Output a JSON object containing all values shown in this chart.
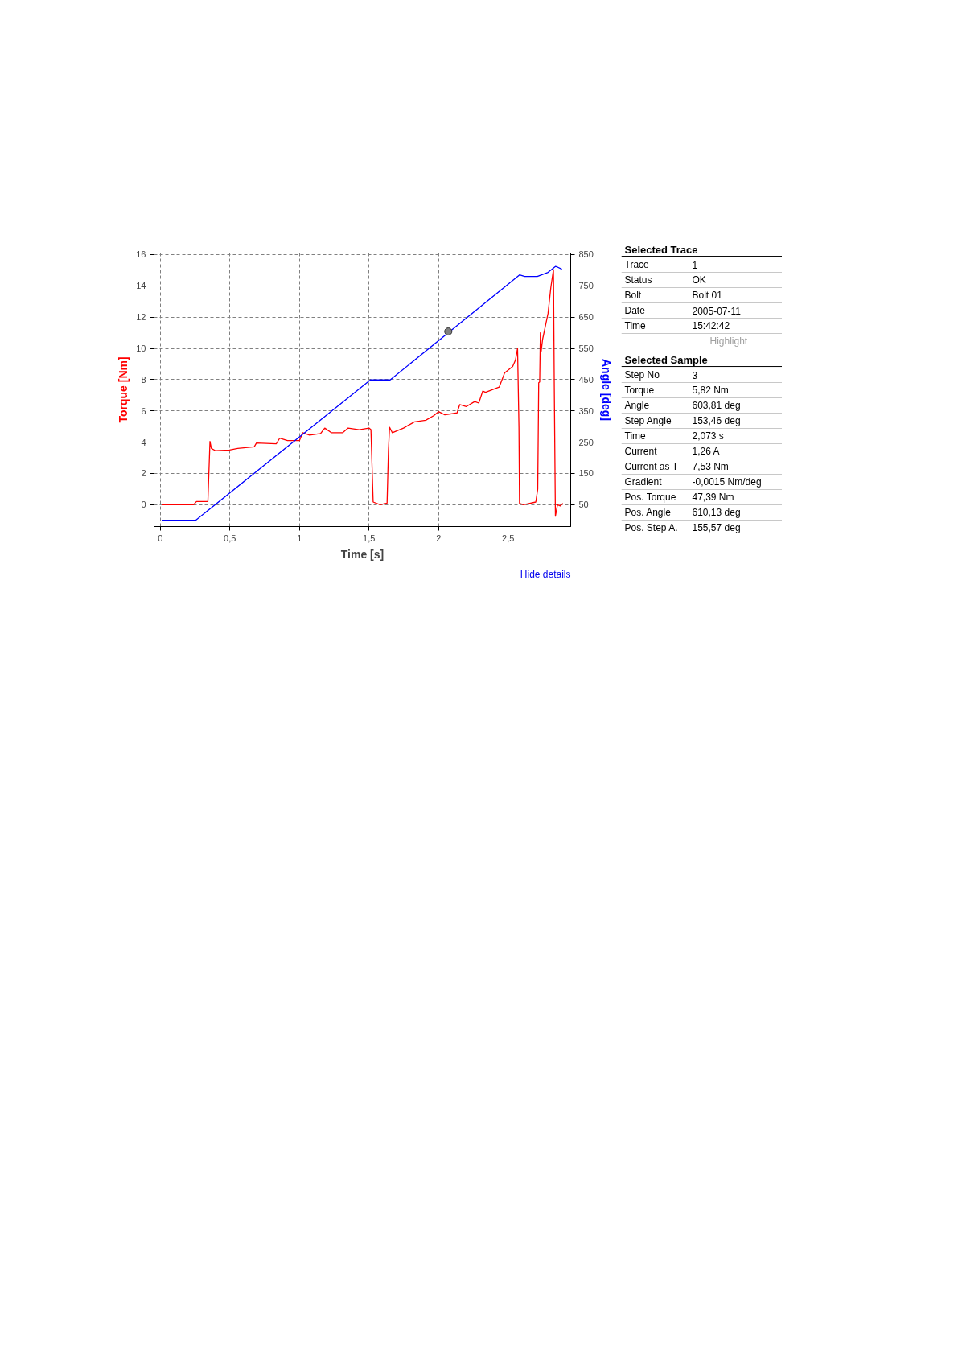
{
  "chart_data": [
    {
      "type": "line",
      "xlabel": "Time [s]",
      "ylabel": "Torque [Nm]",
      "y2label": "Angle [deg]",
      "xlim": [
        -0.045,
        2.95
      ],
      "ylim": [
        -1.4,
        16.1
      ],
      "y2lim": [
        -20,
        855
      ],
      "xticks": [
        0,
        {
          "value": 0.5,
          "label": "0,5"
        },
        1,
        {
          "value": 1.5,
          "label": "1,5"
        },
        2,
        {
          "value": 2.5,
          "label": "2,5"
        }
      ],
      "yticks": [
        0,
        2,
        4,
        6,
        8,
        10,
        12,
        14,
        16
      ],
      "y2ticks": [
        50,
        150,
        250,
        350,
        450,
        550,
        650,
        750,
        850
      ],
      "grid": true,
      "line_style": "solid",
      "annotations": [
        "Hide details"
      ],
      "series": [
        {
          "color": "#ff0000",
          "marker": "none",
          "x": [
            0.01,
            0.24,
            0.26,
            0.342,
            0.357,
            0.367,
            0.397,
            0.497,
            0.556,
            0.675,
            0.691,
            0.834,
            0.858,
            0.914,
            1.0,
            1.023,
            1.073,
            1.152,
            1.182,
            1.231,
            1.31,
            1.35,
            1.43,
            1.5,
            1.514,
            1.53,
            1.58,
            1.63,
            1.64,
            1.648,
            1.668,
            1.748,
            1.827,
            1.908,
            1.967,
            2.0,
            2.045,
            2.133,
            2.152,
            2.2,
            2.26,
            2.289,
            2.318,
            2.338,
            2.436,
            2.475,
            2.533,
            2.553,
            2.568,
            2.578,
            2.582,
            2.611,
            2.699,
            2.713,
            2.72,
            2.727,
            2.732,
            2.738,
            2.748,
            2.787,
            2.807,
            2.826,
            2.832,
            2.84,
            2.855,
            2.875,
            2.895
          ],
          "values": [
            0,
            0,
            0.2,
            0.2,
            4.05,
            3.6,
            3.45,
            3.5,
            3.6,
            3.7,
            3.95,
            3.9,
            4.25,
            4.1,
            4.1,
            4.6,
            4.45,
            4.55,
            4.9,
            4.6,
            4.6,
            4.9,
            4.8,
            4.9,
            4.8,
            0.17,
            0,
            0.1,
            3.5,
            4.95,
            4.6,
            4.9,
            5.3,
            5.4,
            5.7,
            5.95,
            5.75,
            5.87,
            6.4,
            6.28,
            6.6,
            6.5,
            7.27,
            7.19,
            7.52,
            8.43,
            8.84,
            9.26,
            10.0,
            4.96,
            0.08,
            0,
            0.17,
            1.0,
            7.8,
            7.85,
            11.0,
            9.83,
            10.58,
            12.23,
            13.88,
            15.04,
            7.5,
            -0.74,
            0,
            -0.08,
            0.08
          ]
        },
        {
          "color": "#0000ff",
          "axis": "y2",
          "marker": "none",
          "x": [
            0.01,
            0.254,
            1.51,
            1.652,
            2.582,
            2.62,
            2.71,
            2.787,
            2.84,
            2.855,
            2.887
          ],
          "values": [
            0,
            0,
            449,
            449,
            785,
            780,
            780,
            793,
            812,
            810,
            803
          ]
        },
        {
          "type": "scatter",
          "color": "#808080",
          "axis": "y2",
          "marker": "circle",
          "x": [
            2.07
          ],
          "values": [
            604
          ]
        }
      ]
    },
    {
      "type": "other",
      "title": "Selected Trace",
      "categories": [
        "Trace",
        "Status",
        "Bolt",
        "Date",
        "Time"
      ],
      "value_labels": [
        "1",
        "OK",
        "Bolt 01",
        "2005-07-11",
        "15:42:42"
      ],
      "annotations": [
        "Highlight"
      ]
    },
    {
      "type": "other",
      "title": "Selected Sample",
      "categories": [
        "Step No",
        "Torque",
        "Angle",
        "Step Angle",
        "Time",
        "Current",
        "Current as T",
        "Gradient",
        "Pos. Torque",
        "Pos. Angle",
        "Pos. Step A."
      ],
      "value_labels": [
        "3",
        "5,82 Nm",
        "603,81 deg",
        "153,46 deg",
        "2,073 s",
        "1,26 A",
        "7,53 Nm",
        "-0,0015 Nm/deg",
        "47,39 Nm",
        "610,13 deg",
        "155,57 deg"
      ]
    }
  ]
}
